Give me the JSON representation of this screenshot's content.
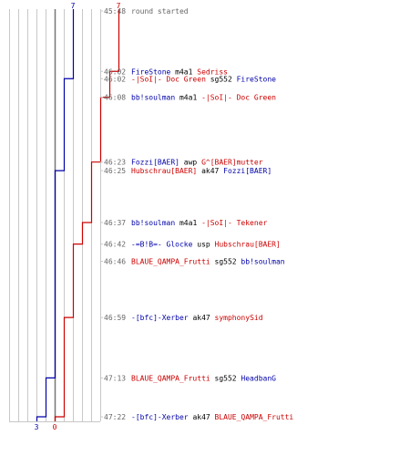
{
  "chart_data": {
    "type": "line",
    "title": "",
    "xlabel": "",
    "ylabel": "",
    "team_blue": {
      "color": "#0000aa",
      "start_label": "7",
      "end_label": "3",
      "players_alive": [
        7,
        7,
        6,
        6,
        6,
        5,
        5,
        5,
        5,
        5,
        4,
        4,
        3
      ]
    },
    "team_red": {
      "color": "#cc0000",
      "start_label": "7",
      "end_label": "0",
      "players_alive": [
        7,
        6,
        6,
        5,
        4,
        4,
        3,
        2,
        2,
        1,
        1,
        0,
        0
      ]
    },
    "events": [
      {
        "time": "45:48",
        "killer": "",
        "killer_team": "",
        "weapon": "round started",
        "victim": "",
        "victim_team": ""
      },
      {
        "time": "46:02",
        "killer": "FireStone",
        "killer_team": "blue",
        "weapon": "m4a1",
        "victim": "Sedriss",
        "victim_team": "red"
      },
      {
        "time": "46:02",
        "killer": "-|SoI|- Doc Green",
        "killer_team": "red",
        "weapon": "sg552",
        "victim": "FireStone",
        "victim_team": "blue"
      },
      {
        "time": "46:08",
        "killer": "bb!soulman",
        "killer_team": "blue",
        "weapon": "m4a1",
        "victim": "-|SoI|- Doc Green",
        "victim_team": "red"
      },
      {
        "time": "46:23",
        "killer": "Fozzi[BAER]",
        "killer_team": "blue",
        "weapon": "awp",
        "victim": "G^[BAER]mutter",
        "victim_team": "red"
      },
      {
        "time": "46:25",
        "killer": "Hubschrau[BAER]",
        "killer_team": "red",
        "weapon": "ak47",
        "victim": "Fozzi[BAER]",
        "victim_team": "blue"
      },
      {
        "time": "46:37",
        "killer": "bb!soulman",
        "killer_team": "blue",
        "weapon": "m4a1",
        "victim": "-|SoI|- Tekener",
        "victim_team": "red"
      },
      {
        "time": "46:42",
        "killer": "-=B!B=- Glocke",
        "killer_team": "blue",
        "weapon": "usp",
        "victim": "Hubschrau[BAER]",
        "victim_team": "red"
      },
      {
        "time": "46:46",
        "killer": "BLAUE_QAMPA_Frutti",
        "killer_team": "red",
        "weapon": "sg552",
        "victim": "bb!soulman",
        "victim_team": "blue"
      },
      {
        "time": "46:59",
        "killer": "-[bfc]-Xerber",
        "killer_team": "blue",
        "weapon": "ak47",
        "victim": "symphonySid",
        "victim_team": "red"
      },
      {
        "time": "47:13",
        "killer": "BLAUE_QAMPA_Frutti",
        "killer_team": "red",
        "weapon": "sg552",
        "victim": "HeadbanG",
        "victim_team": "blue"
      },
      {
        "time": "47:22",
        "killer": "-[bfc]-Xerber",
        "killer_team": "blue",
        "weapon": "ak47",
        "victim": "BLAUE_QAMPA_Frutti",
        "victim_team": "red"
      }
    ],
    "colors": {
      "blue": "#0000aa",
      "red": "#cc0000",
      "neutral": "#666666",
      "grid": "#c8c8c8",
      "axis": "#777777"
    },
    "grid": true,
    "grid_lines_count": 10
  }
}
